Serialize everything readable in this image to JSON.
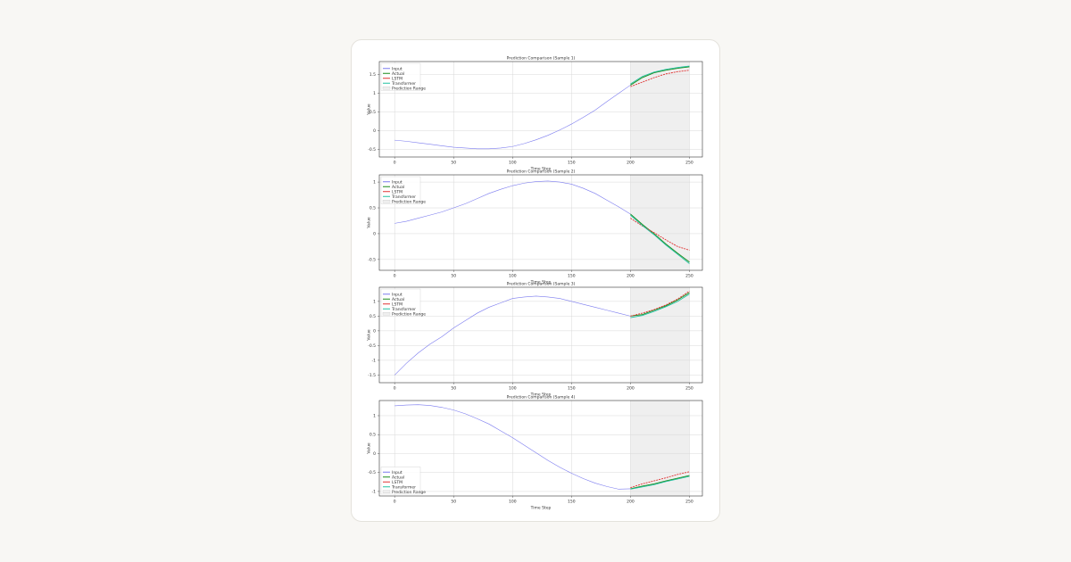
{
  "chart_data": [
    {
      "type": "line",
      "title": "Prediction Comparison (Sample 1)",
      "x_label": "Time Step",
      "y_label": "Value",
      "x": [
        0,
        10,
        20,
        30,
        40,
        50,
        60,
        70,
        80,
        90,
        100,
        110,
        120,
        130,
        140,
        150,
        160,
        170,
        180,
        190,
        200,
        210,
        220,
        230,
        240,
        250
      ],
      "xlim": [
        -13,
        261
      ],
      "xticks": [
        0,
        50,
        100,
        150,
        200,
        250
      ],
      "ylim": [
        -0.7,
        1.85
      ],
      "yticks": [
        -0.5,
        0.0,
        0.5,
        1.0,
        1.5
      ],
      "grid": true,
      "legend": "upper left",
      "prediction_range": {
        "name": "Prediction Range",
        "x": [
          200,
          250
        ],
        "color": "#efefef"
      },
      "series": [
        {
          "name": "Input",
          "color": "#7b7bef",
          "values": [
            -0.25,
            -0.28,
            -0.32,
            -0.36,
            -0.4,
            -0.44,
            -0.46,
            -0.48,
            -0.48,
            -0.46,
            -0.42,
            -0.34,
            -0.24,
            -0.12,
            0.02,
            0.18,
            0.36,
            0.55,
            0.78,
            1.0,
            1.22,
            null,
            null,
            null,
            null,
            null
          ]
        },
        {
          "name": "Actual",
          "color": "#1a8a1a",
          "values": [
            null,
            null,
            null,
            null,
            null,
            null,
            null,
            null,
            null,
            null,
            null,
            null,
            null,
            null,
            null,
            null,
            null,
            null,
            null,
            null,
            1.22,
            1.42,
            1.55,
            1.62,
            1.67,
            1.71
          ]
        },
        {
          "name": "LSTM",
          "color": "#e03030",
          "values": [
            null,
            null,
            null,
            null,
            null,
            null,
            null,
            null,
            null,
            null,
            null,
            null,
            null,
            null,
            null,
            null,
            null,
            null,
            null,
            null,
            1.18,
            1.3,
            1.42,
            1.52,
            1.58,
            1.62
          ]
        },
        {
          "name": "Transformer",
          "color": "#20c0a0",
          "values": [
            null,
            null,
            null,
            null,
            null,
            null,
            null,
            null,
            null,
            null,
            null,
            null,
            null,
            null,
            null,
            null,
            null,
            null,
            null,
            null,
            1.25,
            1.45,
            1.57,
            1.64,
            1.69,
            1.73
          ]
        }
      ]
    },
    {
      "type": "line",
      "title": "Prediction Comparison (Sample 2)",
      "x_label": "Time Step",
      "y_label": "Value",
      "x": [
        0,
        10,
        20,
        30,
        40,
        50,
        60,
        70,
        80,
        90,
        100,
        110,
        120,
        130,
        140,
        150,
        160,
        170,
        180,
        190,
        200,
        210,
        220,
        230,
        240,
        250
      ],
      "xlim": [
        -13,
        261
      ],
      "xticks": [
        0,
        50,
        100,
        150,
        200,
        250
      ],
      "ylim": [
        -0.71,
        1.14
      ],
      "yticks": [
        -0.5,
        0.0,
        0.5,
        1.0
      ],
      "grid": true,
      "legend": "upper left",
      "prediction_range": {
        "name": "Prediction Range",
        "x": [
          200,
          250
        ],
        "color": "#efefef"
      },
      "series": [
        {
          "name": "Input",
          "color": "#7b7bef",
          "values": [
            0.2,
            0.24,
            0.3,
            0.36,
            0.42,
            0.5,
            0.58,
            0.68,
            0.78,
            0.86,
            0.93,
            0.98,
            1.01,
            1.02,
            1.0,
            0.96,
            0.88,
            0.78,
            0.65,
            0.52,
            0.38,
            null,
            null,
            null,
            null,
            null
          ]
        },
        {
          "name": "Actual",
          "color": "#1a8a1a",
          "values": [
            null,
            null,
            null,
            null,
            null,
            null,
            null,
            null,
            null,
            null,
            null,
            null,
            null,
            null,
            null,
            null,
            null,
            null,
            null,
            null,
            0.38,
            0.18,
            0.0,
            -0.2,
            -0.38,
            -0.55
          ]
        },
        {
          "name": "LSTM",
          "color": "#e03030",
          "values": [
            null,
            null,
            null,
            null,
            null,
            null,
            null,
            null,
            null,
            null,
            null,
            null,
            null,
            null,
            null,
            null,
            null,
            null,
            null,
            null,
            0.3,
            0.15,
            0.02,
            -0.12,
            -0.25,
            -0.32
          ]
        },
        {
          "name": "Transformer",
          "color": "#20c0a0",
          "values": [
            null,
            null,
            null,
            null,
            null,
            null,
            null,
            null,
            null,
            null,
            null,
            null,
            null,
            null,
            null,
            null,
            null,
            null,
            null,
            null,
            0.36,
            0.16,
            -0.02,
            -0.22,
            -0.4,
            -0.58
          ]
        }
      ]
    },
    {
      "type": "line",
      "title": "Prediction Comparison (Sample 3)",
      "x_label": "Time Step",
      "y_label": "Value",
      "x": [
        0,
        10,
        20,
        30,
        40,
        50,
        60,
        70,
        80,
        90,
        100,
        110,
        120,
        130,
        140,
        150,
        160,
        170,
        180,
        190,
        200,
        210,
        220,
        230,
        240,
        250
      ],
      "xlim": [
        -13,
        261
      ],
      "xticks": [
        0,
        50,
        100,
        150,
        200,
        250
      ],
      "ylim": [
        -1.76,
        1.48
      ],
      "yticks": [
        -1.5,
        -1.0,
        -0.5,
        0.0,
        0.5,
        1.0
      ],
      "grid": true,
      "legend": "upper left",
      "prediction_range": {
        "name": "Prediction Range",
        "x": [
          200,
          250
        ],
        "color": "#efefef"
      },
      "series": [
        {
          "name": "Input",
          "color": "#7b7bef",
          "values": [
            -1.5,
            -1.1,
            -0.75,
            -0.45,
            -0.2,
            0.1,
            0.35,
            0.6,
            0.8,
            0.95,
            1.1,
            1.15,
            1.18,
            1.15,
            1.1,
            1.0,
            0.9,
            0.8,
            0.7,
            0.6,
            0.5,
            null,
            null,
            null,
            null,
            null
          ]
        },
        {
          "name": "Actual",
          "color": "#1a8a1a",
          "values": [
            null,
            null,
            null,
            null,
            null,
            null,
            null,
            null,
            null,
            null,
            null,
            null,
            null,
            null,
            null,
            null,
            null,
            null,
            null,
            null,
            0.5,
            0.55,
            0.7,
            0.85,
            1.05,
            1.3
          ]
        },
        {
          "name": "LSTM",
          "color": "#e03030",
          "values": [
            null,
            null,
            null,
            null,
            null,
            null,
            null,
            null,
            null,
            null,
            null,
            null,
            null,
            null,
            null,
            null,
            null,
            null,
            null,
            null,
            0.5,
            0.6,
            0.72,
            0.88,
            1.08,
            1.35
          ]
        },
        {
          "name": "Transformer",
          "color": "#20c0a0",
          "values": [
            null,
            null,
            null,
            null,
            null,
            null,
            null,
            null,
            null,
            null,
            null,
            null,
            null,
            null,
            null,
            null,
            null,
            null,
            null,
            null,
            0.45,
            0.52,
            0.66,
            0.82,
            1.0,
            1.25
          ]
        }
      ]
    },
    {
      "type": "line",
      "title": "Prediction Comparison (Sample 4)",
      "x_label": "Time Step",
      "y_label": "Value",
      "x": [
        0,
        10,
        20,
        30,
        40,
        50,
        60,
        70,
        80,
        90,
        100,
        110,
        120,
        130,
        140,
        150,
        160,
        170,
        180,
        190,
        200,
        210,
        220,
        230,
        240,
        250
      ],
      "xlim": [
        -13,
        261
      ],
      "xticks": [
        0,
        50,
        100,
        150,
        200,
        250
      ],
      "ylim": [
        -1.12,
        1.4
      ],
      "yticks": [
        -1.0,
        -0.5,
        0.0,
        0.5,
        1.0
      ],
      "grid": true,
      "legend": "lower left",
      "prediction_range": {
        "name": "Prediction Range",
        "x": [
          200,
          250
        ],
        "color": "#efefef"
      },
      "series": [
        {
          "name": "Input",
          "color": "#7b7bef",
          "values": [
            1.26,
            1.28,
            1.29,
            1.27,
            1.22,
            1.15,
            1.05,
            0.92,
            0.78,
            0.6,
            0.42,
            0.22,
            0.02,
            -0.18,
            -0.36,
            -0.52,
            -0.66,
            -0.78,
            -0.87,
            -0.94,
            -0.93,
            null,
            null,
            null,
            null,
            null
          ]
        },
        {
          "name": "Actual",
          "color": "#1a8a1a",
          "values": [
            null,
            null,
            null,
            null,
            null,
            null,
            null,
            null,
            null,
            null,
            null,
            null,
            null,
            null,
            null,
            null,
            null,
            null,
            null,
            null,
            -0.93,
            -0.86,
            -0.8,
            -0.72,
            -0.65,
            -0.58
          ]
        },
        {
          "name": "LSTM",
          "color": "#e03030",
          "values": [
            null,
            null,
            null,
            null,
            null,
            null,
            null,
            null,
            null,
            null,
            null,
            null,
            null,
            null,
            null,
            null,
            null,
            null,
            null,
            null,
            -0.9,
            -0.8,
            -0.72,
            -0.64,
            -0.55,
            -0.48
          ]
        },
        {
          "name": "Transformer",
          "color": "#20c0a0",
          "values": [
            null,
            null,
            null,
            null,
            null,
            null,
            null,
            null,
            null,
            null,
            null,
            null,
            null,
            null,
            null,
            null,
            null,
            null,
            null,
            null,
            -0.94,
            -0.88,
            -0.82,
            -0.74,
            -0.67,
            -0.6
          ]
        }
      ]
    }
  ]
}
